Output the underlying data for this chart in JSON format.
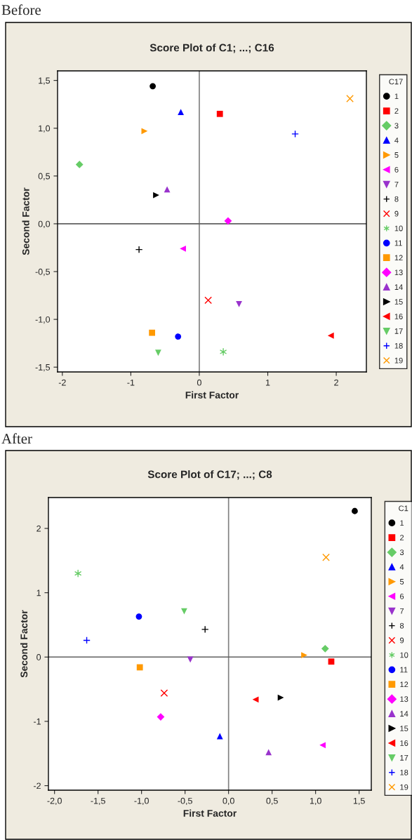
{
  "chart_data": [
    {
      "type": "scatter",
      "title": "Score Plot of C1; ...; C16",
      "xlabel": "First Factor",
      "ylabel": "Second Factor",
      "legend_title": "C17",
      "annotations": [
        "Before"
      ],
      "xlim": [
        -2.07,
        2.44
      ],
      "ylim": [
        -1.55,
        1.6
      ],
      "xticks": [
        -2,
        -1,
        0,
        1,
        2
      ],
      "yticks": [
        {
          "value": -1.5,
          "label": "-1,5"
        },
        {
          "value": -1.0,
          "label": "-1,0"
        },
        {
          "value": -0.5,
          "label": "-0,5"
        },
        {
          "value": 0.0,
          "label": "0,0"
        },
        {
          "value": 0.5,
          "label": "0,5"
        },
        {
          "value": 1.0,
          "label": "1,0"
        },
        {
          "value": 1.5,
          "label": "1,5"
        }
      ],
      "grid": false,
      "legend": "right",
      "ref_lines": [
        {
          "axis": "x",
          "value": 0,
          "color": "#808080"
        },
        {
          "axis": "y",
          "value": 0,
          "color": "#606060"
        }
      ],
      "series": [
        {
          "name": "1",
          "color": "#000000",
          "marker": "circle",
          "x": [
            -0.68
          ],
          "values": [
            1.44
          ]
        },
        {
          "name": "2",
          "color": "#ff0000",
          "marker": "square",
          "x": [
            0.3
          ],
          "values": [
            1.15
          ]
        },
        {
          "name": "3",
          "color": "#66cc66",
          "marker": "diamond",
          "x": [
            -1.75
          ],
          "values": [
            0.62
          ]
        },
        {
          "name": "4",
          "color": "#0000ff",
          "marker": "triangle",
          "x": [
            -0.27
          ],
          "values": [
            1.17
          ]
        },
        {
          "name": "5",
          "color": "#ff9900",
          "marker": "triangle-right",
          "x": [
            -0.8
          ],
          "values": [
            0.97
          ]
        },
        {
          "name": "6",
          "color": "#ff00ff",
          "marker": "triangle-left",
          "x": [
            -0.24
          ],
          "values": [
            -0.26
          ]
        },
        {
          "name": "7",
          "color": "#9933cc",
          "marker": "triangle-down",
          "x": [
            0.58
          ],
          "values": [
            -0.84
          ]
        },
        {
          "name": "8",
          "color": "#000000",
          "marker": "plus",
          "x": [
            -0.88
          ],
          "values": [
            -0.27
          ]
        },
        {
          "name": "9",
          "color": "#ff0000",
          "marker": "x",
          "x": [
            0.13
          ],
          "values": [
            -0.8
          ]
        },
        {
          "name": "10",
          "color": "#66cc66",
          "marker": "cross",
          "x": [
            0.35
          ],
          "values": [
            -1.34
          ]
        },
        {
          "name": "11",
          "color": "#0000ff",
          "marker": "circle",
          "x": [
            -0.31
          ],
          "values": [
            -1.18
          ]
        },
        {
          "name": "12",
          "color": "#ff9900",
          "marker": "square",
          "x": [
            -0.69
          ],
          "values": [
            -1.14
          ]
        },
        {
          "name": "13",
          "color": "#ff00ff",
          "marker": "diamond",
          "x": [
            0.42
          ],
          "values": [
            0.03
          ]
        },
        {
          "name": "14",
          "color": "#9933cc",
          "marker": "triangle",
          "x": [
            -0.47
          ],
          "values": [
            0.36
          ]
        },
        {
          "name": "15",
          "color": "#000000",
          "marker": "triangle-right",
          "x": [
            -0.63
          ],
          "values": [
            0.3
          ]
        },
        {
          "name": "16",
          "color": "#ff0000",
          "marker": "triangle-left",
          "x": [
            1.92
          ],
          "values": [
            -1.17
          ]
        },
        {
          "name": "17",
          "color": "#66cc66",
          "marker": "triangle-down",
          "x": [
            -0.6
          ],
          "values": [
            -1.35
          ]
        },
        {
          "name": "18",
          "color": "#0000ff",
          "marker": "plus",
          "x": [
            1.4
          ],
          "values": [
            0.94
          ]
        },
        {
          "name": "19",
          "color": "#ff9900",
          "marker": "x",
          "x": [
            2.2
          ],
          "values": [
            1.31
          ]
        }
      ]
    },
    {
      "type": "scatter",
      "title": "Score Plot of C17; ...; C8",
      "xlabel": "First Factor",
      "ylabel": "Second Factor",
      "legend_title": "C1",
      "annotations": [
        "After"
      ],
      "xlim": [
        -2.07,
        1.64
      ],
      "ylim": [
        -2.07,
        2.48
      ],
      "xticks": [
        {
          "value": -2.0,
          "label": "-2,0"
        },
        {
          "value": -1.5,
          "label": "-1,5"
        },
        {
          "value": -1.0,
          "label": "-1,0"
        },
        {
          "value": -0.5,
          "label": "-0,5"
        },
        {
          "value": 0.0,
          "label": "0,0"
        },
        {
          "value": 0.5,
          "label": "0,5"
        },
        {
          "value": 1.0,
          "label": "1,0"
        },
        {
          "value": 1.5,
          "label": "1,5"
        }
      ],
      "yticks": [
        -2,
        -1,
        0,
        1,
        2
      ],
      "grid": false,
      "legend": "right",
      "ref_lines": [
        {
          "axis": "x",
          "value": 0,
          "color": "#808080"
        },
        {
          "axis": "y",
          "value": 0,
          "color": "#606060"
        }
      ],
      "series": [
        {
          "name": "1",
          "color": "#000000",
          "marker": "circle",
          "x": [
            1.45
          ],
          "values": [
            2.27
          ]
        },
        {
          "name": "2",
          "color": "#ff0000",
          "marker": "square",
          "x": [
            1.18
          ],
          "values": [
            -0.07
          ]
        },
        {
          "name": "3",
          "color": "#66cc66",
          "marker": "diamond",
          "x": [
            1.11
          ],
          "values": [
            0.13
          ]
        },
        {
          "name": "4",
          "color": "#0000ff",
          "marker": "triangle",
          "x": [
            -0.1
          ],
          "values": [
            -1.23
          ]
        },
        {
          "name": "5",
          "color": "#ff9900",
          "marker": "triangle-right",
          "x": [
            0.87
          ],
          "values": [
            0.03
          ]
        },
        {
          "name": "6",
          "color": "#ff00ff",
          "marker": "triangle-left",
          "x": [
            1.08
          ],
          "values": [
            -1.37
          ]
        },
        {
          "name": "7",
          "color": "#9933cc",
          "marker": "triangle-down",
          "x": [
            -0.44
          ],
          "values": [
            -0.04
          ]
        },
        {
          "name": "8",
          "color": "#000000",
          "marker": "plus",
          "x": [
            -0.27
          ],
          "values": [
            0.43
          ]
        },
        {
          "name": "9",
          "color": "#ff0000",
          "marker": "x",
          "x": [
            -0.74
          ],
          "values": [
            -0.56
          ]
        },
        {
          "name": "10",
          "color": "#66cc66",
          "marker": "cross",
          "x": [
            -1.73
          ],
          "values": [
            1.3
          ]
        },
        {
          "name": "11",
          "color": "#0000ff",
          "marker": "circle",
          "x": [
            -1.03
          ],
          "values": [
            0.63
          ]
        },
        {
          "name": "12",
          "color": "#ff9900",
          "marker": "square",
          "x": [
            -1.02
          ],
          "values": [
            -0.16
          ]
        },
        {
          "name": "13",
          "color": "#ff00ff",
          "marker": "diamond",
          "x": [
            -0.78
          ],
          "values": [
            -0.93
          ]
        },
        {
          "name": "14",
          "color": "#9933cc",
          "marker": "triangle",
          "x": [
            0.46
          ],
          "values": [
            -1.48
          ]
        },
        {
          "name": "15",
          "color": "#000000",
          "marker": "triangle-right",
          "x": [
            0.6
          ],
          "values": [
            -0.63
          ]
        },
        {
          "name": "16",
          "color": "#ff0000",
          "marker": "triangle-left",
          "x": [
            0.31
          ],
          "values": [
            -0.66
          ]
        },
        {
          "name": "17",
          "color": "#66cc66",
          "marker": "triangle-down",
          "x": [
            -0.51
          ],
          "values": [
            0.71
          ]
        },
        {
          "name": "18",
          "color": "#0000ff",
          "marker": "plus",
          "x": [
            -1.63
          ],
          "values": [
            0.26
          ]
        },
        {
          "name": "19",
          "color": "#ff9900",
          "marker": "x",
          "x": [
            1.12
          ],
          "values": [
            1.55
          ]
        }
      ]
    }
  ]
}
